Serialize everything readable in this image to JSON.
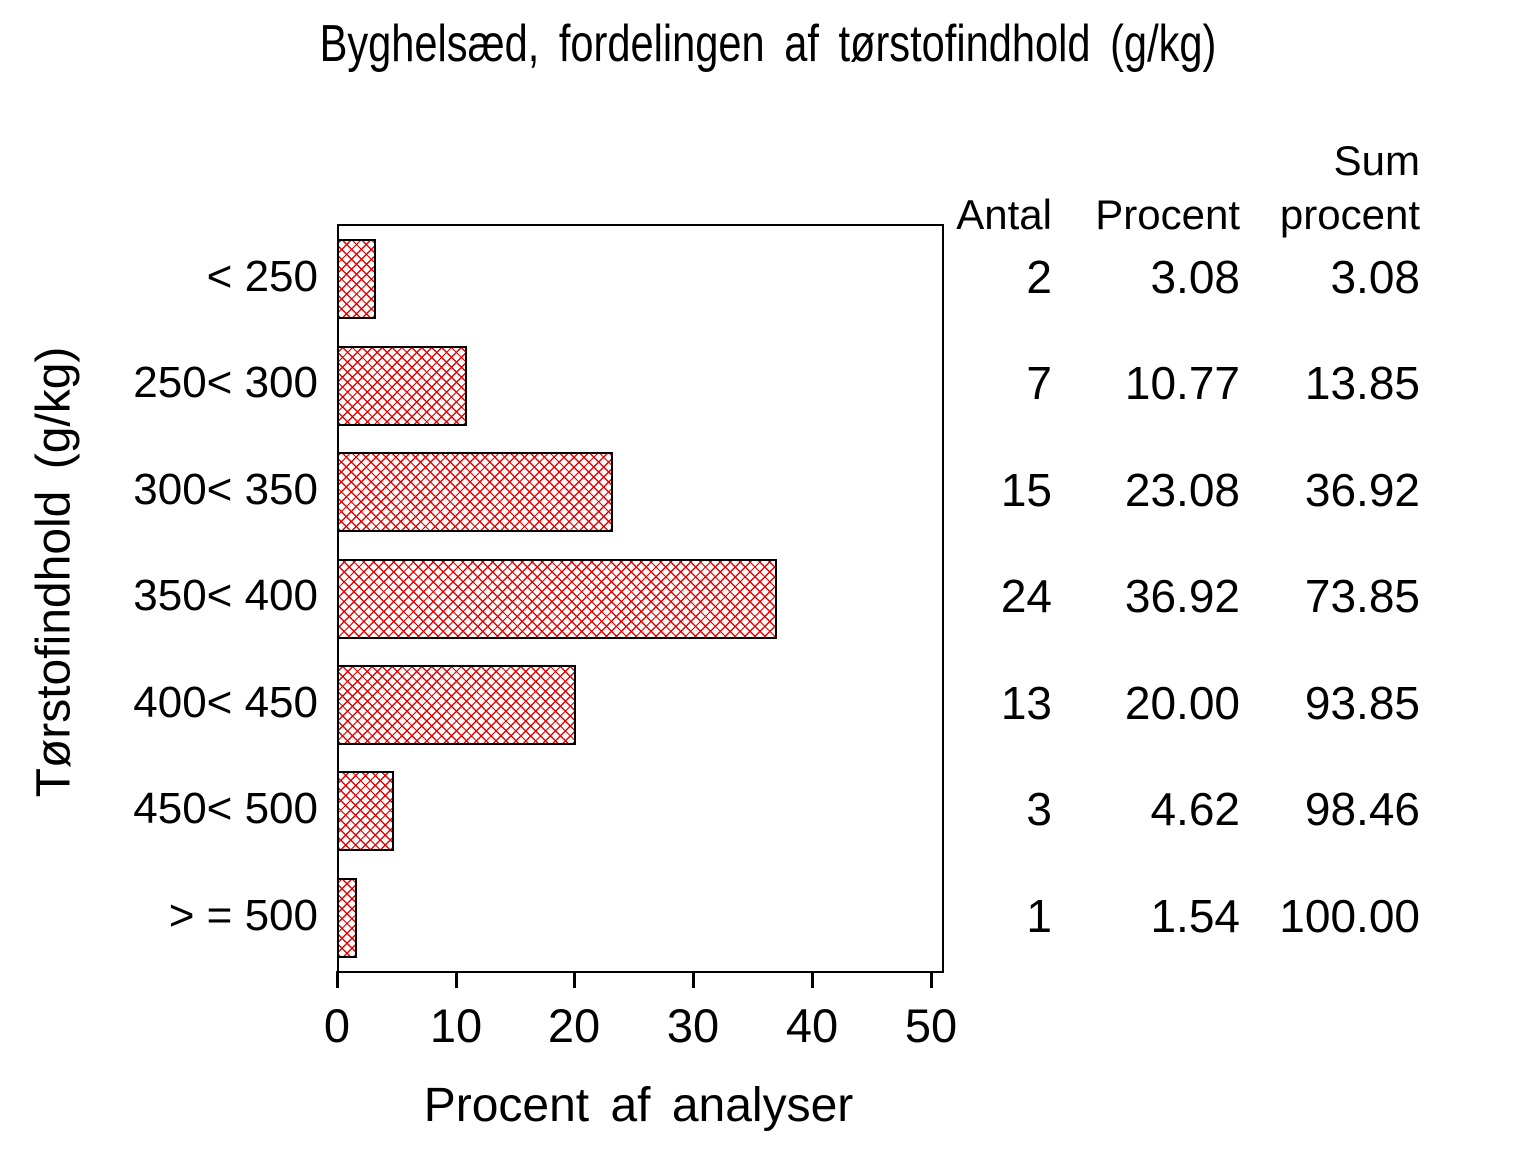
{
  "title": "Byghelsæd,  fordelingen  af  tørstofindhold  (g/kg)",
  "chart_data": {
    "type": "bar",
    "orientation": "horizontal",
    "title": "Byghelsæd, fordelingen af tørstofindhold (g/kg)",
    "xlabel": "Procent  af  analyser",
    "ylabel": "Tørstofindhold  (g/kg)",
    "categories": [
      "< 250",
      "250< 300",
      "300< 350",
      "350< 400",
      "400< 450",
      "450< 500",
      "> = 500"
    ],
    "values": [
      3.08,
      10.77,
      23.08,
      36.92,
      20.0,
      4.62,
      1.54
    ],
    "counts": [
      2,
      7,
      15,
      24,
      13,
      3,
      1
    ],
    "cumulative_percent": [
      3.08,
      13.85,
      36.92,
      73.85,
      93.85,
      98.46,
      100.0
    ],
    "xticks": [
      "0",
      "10",
      "20",
      "30",
      "40",
      "50"
    ],
    "xtick_values": [
      0,
      10,
      20,
      30,
      40,
      50
    ],
    "xlim": [
      0,
      50.8
    ],
    "grid": false,
    "bar_pattern": "crosshatch",
    "bar_color": "#e60000",
    "bar_border_color": "#000000",
    "frame_color": "#000000",
    "background_color": "#ffffff"
  },
  "summary_table": {
    "header_sum_top": "Sum",
    "col_headers": [
      "Antal",
      "Procent",
      "procent"
    ],
    "rows": [
      {
        "antal": "2",
        "procent": "3.08",
        "sum_procent": "3.08"
      },
      {
        "antal": "7",
        "procent": "10.77",
        "sum_procent": "13.85"
      },
      {
        "antal": "15",
        "procent": "23.08",
        "sum_procent": "36.92"
      },
      {
        "antal": "24",
        "procent": "36.92",
        "sum_procent": "73.85"
      },
      {
        "antal": "13",
        "procent": "20.00",
        "sum_procent": "93.85"
      },
      {
        "antal": "3",
        "procent": "4.62",
        "sum_procent": "98.46"
      },
      {
        "antal": "1",
        "procent": "1.54",
        "sum_procent": "100.00"
      }
    ]
  }
}
